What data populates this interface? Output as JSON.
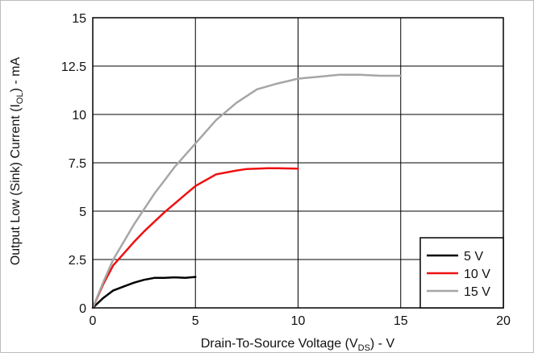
{
  "chart_data": {
    "type": "line",
    "title": "",
    "xlabel": {
      "main": "Drain-To-Source Voltage (V",
      "sub": "DS",
      "tail": ") - V"
    },
    "ylabel": {
      "main": "Output Low (Sink) Current (I",
      "sub": "OL",
      "tail": ") - mA"
    },
    "xlim": [
      0,
      20
    ],
    "ylim": [
      0,
      15
    ],
    "xticks": [
      0,
      5,
      10,
      15,
      20
    ],
    "yticks": [
      0,
      2.5,
      5,
      7.5,
      10,
      12.5,
      15
    ],
    "grid": true,
    "legend_position": "bottom-right",
    "series": [
      {
        "name": "5 V",
        "color": "#000000",
        "x": [
          0,
          0.5,
          1,
          1.5,
          2,
          2.5,
          3,
          3.5,
          4,
          4.5,
          5
        ],
        "y": [
          0,
          0.5,
          0.9,
          1.1,
          1.3,
          1.45,
          1.55,
          1.55,
          1.58,
          1.55,
          1.6
        ]
      },
      {
        "name": "10 V",
        "color": "#ee1111",
        "x": [
          0,
          0.5,
          1,
          1.5,
          2,
          2.5,
          3,
          3.5,
          4,
          4.5,
          5,
          6,
          7,
          7.5,
          8,
          8.5,
          9,
          10
        ],
        "y": [
          0,
          1.2,
          2.2,
          2.8,
          3.4,
          3.95,
          4.45,
          4.95,
          5.4,
          5.85,
          6.3,
          6.9,
          7.1,
          7.18,
          7.2,
          7.22,
          7.22,
          7.2
        ]
      },
      {
        "name": "15 V",
        "color": "#a6a6a6",
        "x": [
          0,
          0.5,
          1,
          1.5,
          2,
          2.5,
          3,
          3.5,
          4,
          4.5,
          5,
          6,
          7,
          8,
          9,
          10,
          11,
          12,
          13,
          14,
          15
        ],
        "y": [
          0,
          1.3,
          2.5,
          3.4,
          4.3,
          5.1,
          5.9,
          6.6,
          7.3,
          7.9,
          8.5,
          9.7,
          10.6,
          11.3,
          11.6,
          11.85,
          11.95,
          12.05,
          12.05,
          12.0,
          12.0
        ]
      }
    ]
  }
}
